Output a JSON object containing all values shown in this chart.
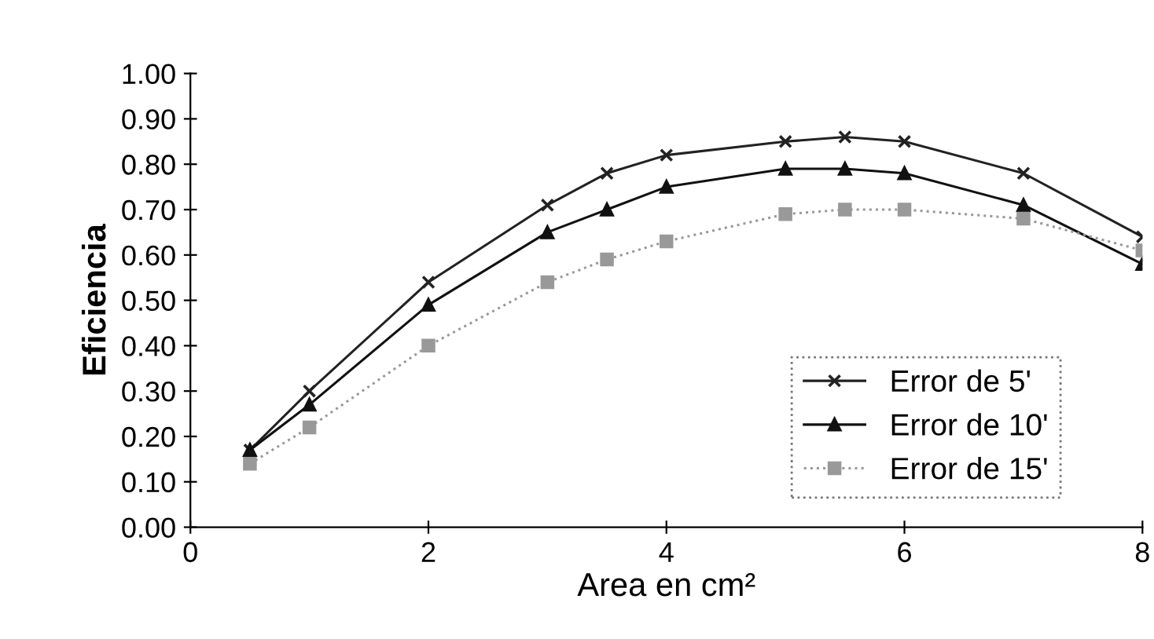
{
  "chart_data": {
    "type": "line",
    "xlabel": "Area en cm²",
    "ylabel": "Eficiencia",
    "x": [
      0.5,
      1,
      2,
      3,
      3.5,
      4,
      5,
      5.5,
      6,
      7,
      8
    ],
    "series": [
      {
        "name": "Error de 5'",
        "color": "#222222",
        "marker": "cross",
        "line_style": "solid",
        "values": [
          0.17,
          0.3,
          0.54,
          0.71,
          0.78,
          0.82,
          0.85,
          0.86,
          0.85,
          0.78,
          0.64
        ]
      },
      {
        "name": "Error de 10'",
        "color": "#111111",
        "marker": "triangle",
        "line_style": "solid",
        "values": [
          0.17,
          0.27,
          0.49,
          0.65,
          0.7,
          0.75,
          0.79,
          0.79,
          0.78,
          0.71,
          0.58
        ]
      },
      {
        "name": "Error de 15'",
        "color": "#999999",
        "marker": "square",
        "line_style": "dotted",
        "values": [
          0.14,
          0.22,
          0.4,
          0.54,
          0.59,
          0.63,
          0.69,
          0.7,
          0.7,
          0.68,
          0.61
        ]
      }
    ],
    "xlim": [
      0,
      8
    ],
    "xticks": [
      0,
      2,
      4,
      6,
      8
    ],
    "ylim": [
      0,
      1
    ],
    "yticks": [
      {
        "value": 0,
        "label": "0.00"
      },
      {
        "value": 0.1,
        "label": "0.10"
      },
      {
        "value": 0.2,
        "label": "0.20"
      },
      {
        "value": 0.3,
        "label": "0.30"
      },
      {
        "value": 0.4,
        "label": "0.40"
      },
      {
        "value": 0.5,
        "label": "0.50"
      },
      {
        "value": 0.6,
        "label": "0.60"
      },
      {
        "value": 0.7,
        "label": "0.70"
      },
      {
        "value": 0.8,
        "label": "0.80"
      },
      {
        "value": 0.9,
        "label": "0.90"
      },
      {
        "value": 1.0,
        "label": "1.00"
      }
    ],
    "grid": false,
    "legend": "center right"
  }
}
